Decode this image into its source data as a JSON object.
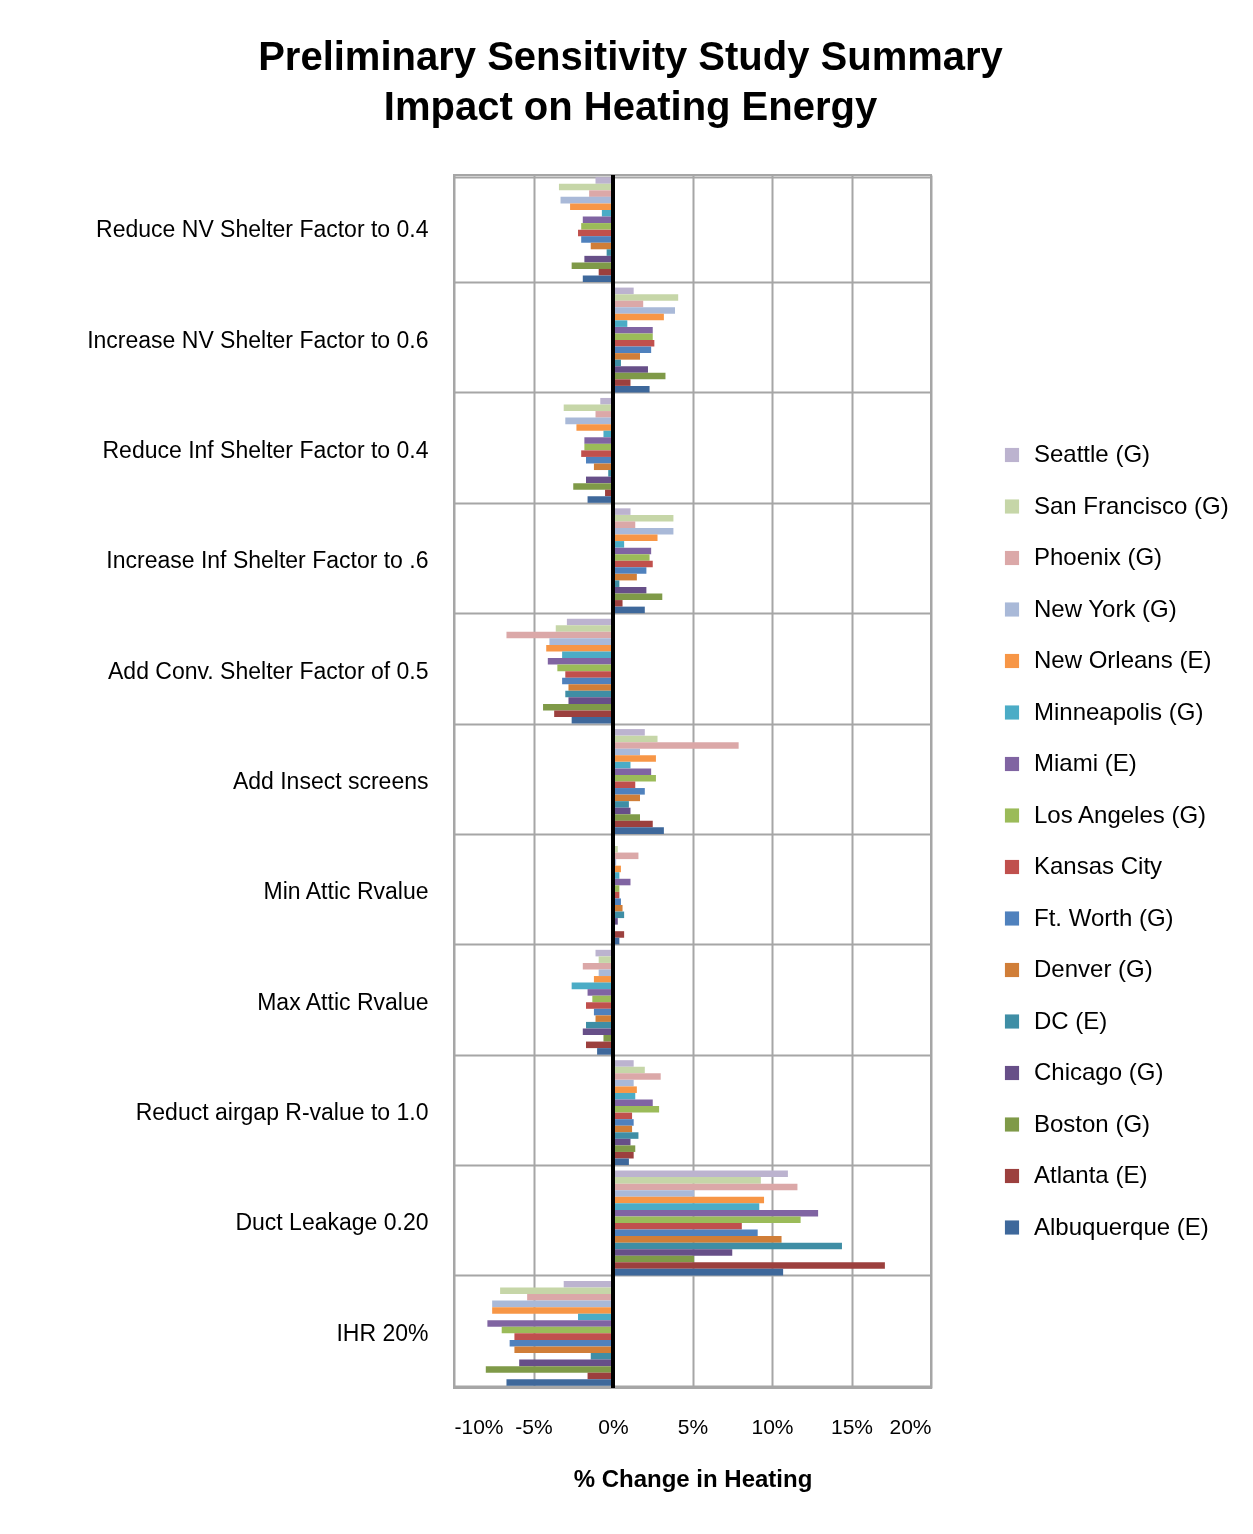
{
  "chart_data": {
    "type": "bar",
    "orientation": "horizontal",
    "title": "Preliminary Sensitivity Study Summary",
    "subtitle": "Impact on Heating Energy",
    "xlabel": "% Change in Heating",
    "categories": [
      "Reduce NV Shelter Factor to 0.4",
      "Increase NV Shelter Factor to 0.6",
      "Reduce Inf Shelter Factor to 0.4",
      "Increase Inf Shelter Factor to .6",
      "Add Conv. Shelter Factor of 0.5",
      "Add Insect screens",
      "Min Attic Rvalue",
      "Max Attic Rvalue",
      "Reduct airgap R-value to 1.0",
      "Duct Leakage 0.20",
      "IHR 20%"
    ],
    "xlim": [
      -10,
      20
    ],
    "xticks": [
      {
        "value": -10,
        "label": "-10%"
      },
      {
        "value": -5,
        "label": "-5%"
      },
      {
        "value": 0,
        "label": "0%"
      },
      {
        "value": 5,
        "label": "5%"
      },
      {
        "value": 10,
        "label": "10%"
      },
      {
        "value": 15,
        "label": "15%"
      },
      {
        "value": 20,
        "label": "20%"
      }
    ],
    "grid": true,
    "legend": "right",
    "series": [
      {
        "name": "Seattle (G)",
        "color": "#bcb3cf",
        "values": [
          -1.1,
          1.3,
          -0.8,
          1.1,
          -2.9,
          2.0,
          null,
          -1.1,
          1.3,
          11.0,
          -3.1
        ]
      },
      {
        "name": "San Francisco (G)",
        "color": "#c6d6a8",
        "values": [
          -3.4,
          4.1,
          -3.1,
          3.8,
          -3.6,
          2.8,
          0.3,
          -0.9,
          2.0,
          9.3,
          -7.1
        ]
      },
      {
        "name": "Phoenix (G)",
        "color": "#dba8a8",
        "values": [
          -1.5,
          1.9,
          -1.1,
          1.4,
          -6.7,
          7.9,
          1.6,
          -1.9,
          3.0,
          11.6,
          -5.4
        ]
      },
      {
        "name": "New York (G)",
        "color": "#a9b9d8",
        "values": [
          -3.3,
          3.9,
          -3.0,
          3.8,
          -4.0,
          1.7,
          0.2,
          -0.9,
          1.3,
          5.1,
          -7.6
        ]
      },
      {
        "name": "New Orleans (E)",
        "color": "#f79646",
        "values": [
          -2.7,
          3.2,
          -2.3,
          2.8,
          -4.2,
          2.7,
          0.5,
          -1.2,
          1.5,
          9.5,
          -7.6
        ]
      },
      {
        "name": "Minneapolis (G)",
        "color": "#4bacc6",
        "values": [
          -0.7,
          0.9,
          -0.6,
          0.7,
          -3.2,
          1.1,
          0.4,
          -2.6,
          1.4,
          9.2,
          -2.2
        ]
      },
      {
        "name": "Miami (E)",
        "color": "#8064a2",
        "values": [
          -1.9,
          2.5,
          -1.8,
          2.4,
          -4.1,
          2.4,
          1.1,
          -1.6,
          2.5,
          12.9,
          -7.9
        ]
      },
      {
        "name": "Los Angeles (G)",
        "color": "#9bbb59",
        "values": [
          -2.0,
          2.5,
          -1.8,
          2.3,
          -3.5,
          2.7,
          0.4,
          -1.3,
          2.9,
          11.8,
          -7.0
        ]
      },
      {
        "name": "Kansas City",
        "color": "#c0504d",
        "values": [
          -2.2,
          2.6,
          -2.0,
          2.5,
          -3.0,
          1.4,
          0.4,
          -1.7,
          1.2,
          8.1,
          -6.2
        ]
      },
      {
        "name": "Ft. Worth (G)",
        "color": "#4f81bd",
        "values": [
          -2.0,
          2.4,
          -1.7,
          2.1,
          -3.2,
          2.0,
          0.5,
          -1.2,
          1.3,
          9.1,
          -6.5
        ]
      },
      {
        "name": "Denver (G)",
        "color": "#d07e38",
        "values": [
          -1.4,
          1.7,
          -1.2,
          1.5,
          -2.8,
          1.7,
          0.6,
          -1.1,
          1.2,
          10.6,
          -6.2
        ]
      },
      {
        "name": "DC (E)",
        "color": "#3f8ea5",
        "values": [
          -0.4,
          0.5,
          -0.3,
          0.4,
          -3.0,
          1.0,
          0.7,
          -1.7,
          1.6,
          14.4,
          -1.4
        ]
      },
      {
        "name": "Chicago (G)",
        "color": "#674f88",
        "values": [
          -1.8,
          2.2,
          -1.7,
          2.1,
          -2.8,
          1.1,
          0.3,
          -1.9,
          1.1,
          7.5,
          -5.9
        ]
      },
      {
        "name": "Boston (G)",
        "color": "#7f9a48",
        "values": [
          -2.6,
          3.3,
          -2.5,
          3.1,
          -4.4,
          1.7,
          null,
          -0.6,
          1.4,
          5.1,
          -8.0
        ]
      },
      {
        "name": "Atlanta (E)",
        "color": "#9c403e",
        "values": [
          -0.9,
          1.1,
          -0.5,
          0.6,
          -3.7,
          2.5,
          0.7,
          -1.7,
          1.3,
          17.1,
          -1.6
        ]
      },
      {
        "name": "Albuquerque (E)",
        "color": "#3e689b",
        "values": [
          -1.9,
          2.3,
          -1.6,
          2.0,
          -2.6,
          3.2,
          0.4,
          -1.0,
          1.0,
          10.7,
          -6.7
        ]
      }
    ]
  }
}
